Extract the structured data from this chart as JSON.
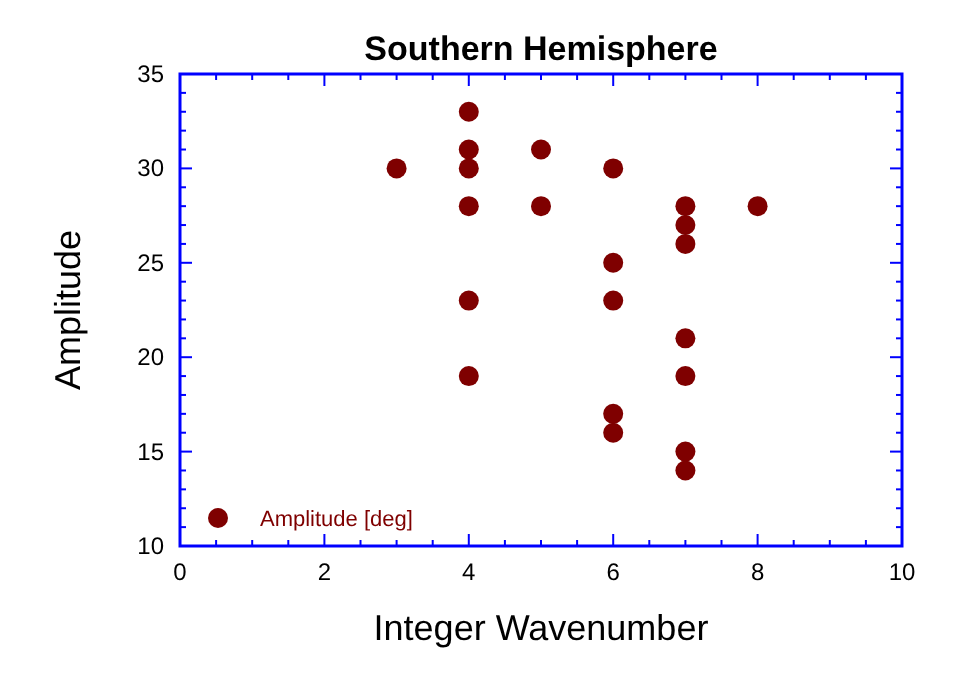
{
  "chart_data": {
    "type": "scatter",
    "title": "Southern Hemisphere",
    "xlabel": "Integer Wavenumber",
    "ylabel": "Amplitude",
    "xlim": [
      0,
      10
    ],
    "xticks": [
      0,
      2,
      4,
      6,
      8,
      10
    ],
    "ylim": [
      10,
      35
    ],
    "yticks": [
      10,
      15,
      20,
      25,
      30,
      35
    ],
    "grid": false,
    "legend": "bottom left",
    "marker": "circle",
    "series": [
      {
        "name": "Amplitude [deg]",
        "color": "#7f0000",
        "x": [
          3,
          4,
          4,
          4,
          4,
          4,
          4,
          5,
          5,
          6,
          6,
          6,
          6,
          6,
          7,
          7,
          7,
          7,
          7,
          7,
          7,
          8
        ],
        "values": [
          30,
          33,
          31,
          30,
          28,
          23,
          19,
          31,
          28,
          30,
          25,
          23,
          17,
          16,
          28,
          27,
          26,
          21,
          19,
          15,
          14,
          28
        ]
      }
    ]
  }
}
